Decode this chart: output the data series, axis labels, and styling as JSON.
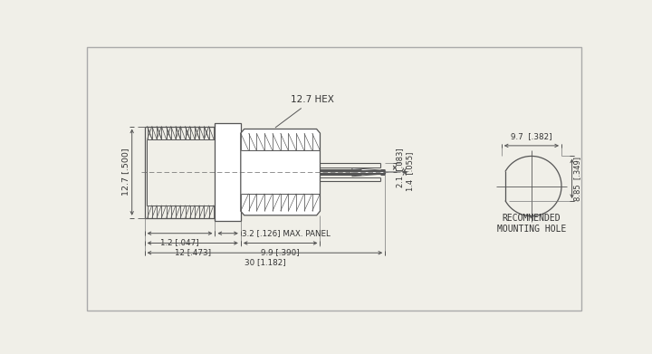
{
  "bg_color": "#f0efe8",
  "line_color": "#555555",
  "text_color": "#333333",
  "annotations": {
    "hex_label": "12.7 HEX",
    "dim_12_7": "12.7 [.500]",
    "dim_1_2": "1.2 [.047]",
    "dim_3_2": "3.2 [.126] MAX. PANEL",
    "dim_12": "12 [.473]",
    "dim_9_9": "9.9 [.390]",
    "dim_30": "30 [1.182]",
    "dim_2_1": "2.1  [.083]",
    "dim_1_4": "1.4  [.055]",
    "dim_9_7": "9.7  [.382]",
    "dim_8_85": "8.85  [.349]",
    "recommended": "RECOMMENDED\nMOUNTING HOLE"
  }
}
